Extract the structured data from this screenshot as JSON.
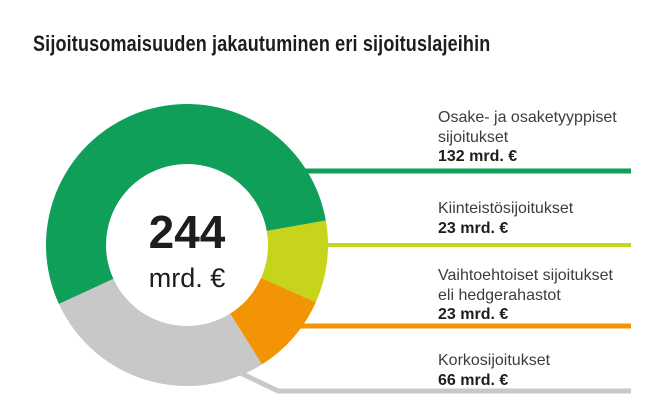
{
  "title": "Sijoitusomaisuuden jakautuminen eri sijoituslajeihin",
  "chart_data": {
    "type": "pie",
    "donut": true,
    "title": "Sijoitusomaisuuden jakautuminen eri sijoituslajeihin",
    "total": 244,
    "unit": "mrd. €",
    "center_total": "244",
    "center_unit": "mrd. €",
    "start_angle_deg": -114.75,
    "legend_position": "right",
    "segments": [
      {
        "label": "Osake- ja osaketyyppiset sijoitukset",
        "value": 132,
        "value_label": "132 mrd. €",
        "color": "#0f9f58"
      },
      {
        "label": "Kiinteistösijoitukset",
        "value": 23,
        "value_label": "23 mrd. €",
        "color": "#c6d41b"
      },
      {
        "label": "Vaihtoehtoiset sijoitukset eli hedgerahastot",
        "value": 23,
        "value_label": "23 mrd. €",
        "color": "#f29404"
      },
      {
        "label": "Korkosijoitukset",
        "value": 66,
        "value_label": "66 mrd. €",
        "color": "#c8c8c8"
      }
    ]
  },
  "legend": {
    "items": [
      {
        "line1": "Osake- ja osaketyyppiset",
        "line2": "sijoitukset",
        "value": "132 mrd. €"
      },
      {
        "line1": "Kiinteistösijoitukset",
        "line2": "",
        "value": "23 mrd. €"
      },
      {
        "line1": "Vaihtoehtoiset sijoitukset",
        "line2": "eli hedgerahastot",
        "value": "23 mrd. €"
      },
      {
        "line1": "Korkosijoitukset",
        "line2": "",
        "value": "66 mrd. €"
      }
    ]
  }
}
